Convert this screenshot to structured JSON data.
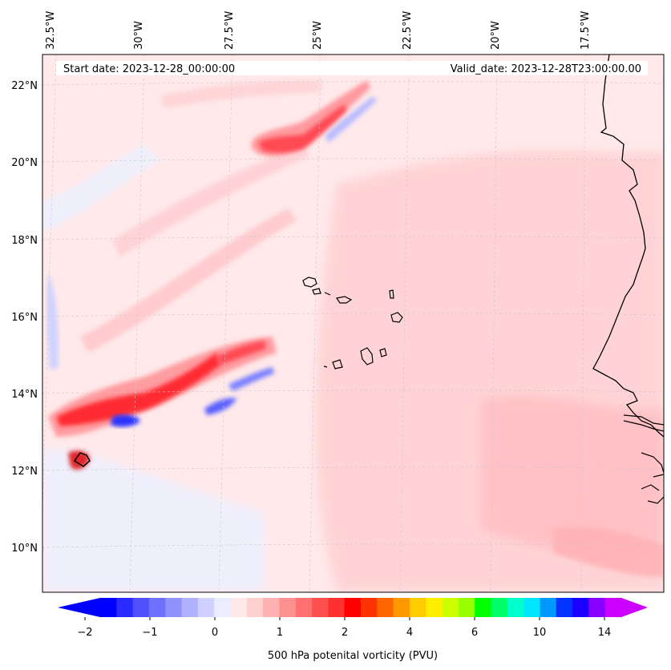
{
  "header": {
    "start_date": "Start date: 2023-12-28_00:00:00",
    "valid_date": "Valid_date: 2023-12-28T23:00:00.00"
  },
  "map": {
    "lon_labels": [
      "32.5°W",
      "30°W",
      "27.5°W",
      "25°W",
      "22.5°W",
      "20°W",
      "17.5°W"
    ],
    "lat_labels": [
      "22°N",
      "20°N",
      "18°N",
      "16°N",
      "14°N",
      "12°N",
      "10°N"
    ],
    "lon_extent": [
      -33,
      -15.5
    ],
    "lat_extent": [
      8.9,
      22.8
    ],
    "gridlines": true,
    "features": "coastlines: West Africa (Senegal, Gambia, Guinea-Bissau), Cabo Verde islands"
  },
  "colorbar": {
    "label": "500 hPa potenital vorticity (PVU)",
    "tick_labels": [
      "−2",
      "−1",
      "0",
      "1",
      "2",
      "4",
      "6",
      "10",
      "14"
    ],
    "extend": "both",
    "colors": [
      "#0000ff",
      "#2b2bff",
      "#5050ff",
      "#7070ff",
      "#9090ff",
      "#b0b0ff",
      "#d0d0ff",
      "#ececff",
      "#ffe8e8",
      "#ffd0d0",
      "#ffb0b0",
      "#ff9090",
      "#ff7070",
      "#ff5050",
      "#ff3030",
      "#ff0000",
      "#ff3300",
      "#ff6600",
      "#ff9900",
      "#ffcc00",
      "#ffee00",
      "#ccff00",
      "#99ff00",
      "#00ff00",
      "#00ff66",
      "#00ffcc",
      "#00e6ff",
      "#0099ff",
      "#0033ff",
      "#1a00ff",
      "#8800ff",
      "#cc00ff"
    ],
    "under_color": "#0000ff",
    "over_color": "#cc00ff"
  }
}
